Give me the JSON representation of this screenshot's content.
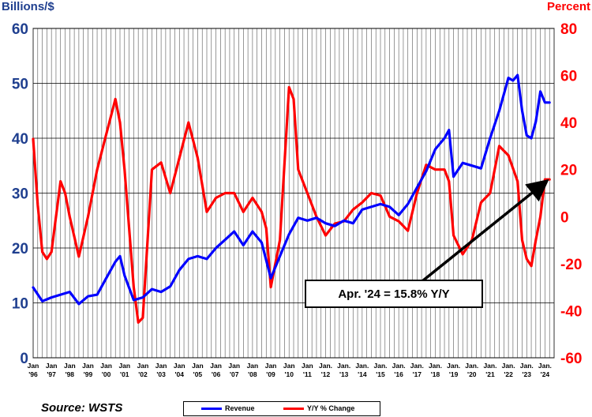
{
  "chart_data": {
    "type": "line",
    "left_axis_label": "Billions/$",
    "right_axis_label": "Percent",
    "source": "Source: WSTS",
    "callout": "Apr. '24 = 15.8% Y/Y",
    "left_ylim": [
      0,
      60
    ],
    "left_ticks": [
      0,
      10,
      20,
      30,
      40,
      50,
      60
    ],
    "right_ylim": [
      -60,
      80
    ],
    "right_ticks": [
      -60,
      -40,
      -20,
      0,
      20,
      40,
      60,
      80
    ],
    "x_tick_top": [
      "Jan",
      "Jan",
      "Jan",
      "Jan",
      "Jan",
      "Jan",
      "Jan",
      "Jan",
      "Jan",
      "Jan",
      "Jan",
      "Jan",
      "Jan",
      "Jan",
      "Jan",
      "Jan",
      "Jan.",
      "Jan.",
      "Jan.",
      "Jan.",
      "Jan.",
      "Jan.",
      "Jan.",
      "Jan.",
      "Jan.",
      "Jan.",
      "Jan.",
      "Jan.",
      "Jan."
    ],
    "x_tick_bottom": [
      "'96",
      "'97",
      "'98",
      "'99",
      "'00",
      "'01",
      "'02",
      "'03",
      "'04",
      "'05",
      "'06",
      "'07",
      "'08",
      "'09",
      "'10",
      "'11",
      "'12",
      "'13",
      "'14",
      "'15",
      "'16",
      "'17",
      "'18",
      "'19",
      "'20",
      "'21",
      "'22",
      "'23",
      "'24"
    ],
    "grid": true,
    "legend_position": "bottom-center",
    "series": [
      {
        "name": "Revenue",
        "axis": "left",
        "color": "#0000ff",
        "x": [
          1996.0,
          1996.5,
          1997.0,
          1997.5,
          1998.0,
          1998.5,
          1999.0,
          1999.5,
          2000.0,
          2000.5,
          2000.75,
          2001.0,
          2001.5,
          2002.0,
          2002.5,
          2003.0,
          2003.5,
          2004.0,
          2004.5,
          2005.0,
          2005.5,
          2006.0,
          2006.5,
          2007.0,
          2007.5,
          2008.0,
          2008.5,
          2009.0,
          2009.5,
          2010.0,
          2010.5,
          2011.0,
          2011.5,
          2012.0,
          2012.5,
          2013.0,
          2013.5,
          2014.0,
          2014.5,
          2015.0,
          2015.5,
          2016.0,
          2016.5,
          2017.0,
          2017.5,
          2018.0,
          2018.5,
          2018.75,
          2019.0,
          2019.5,
          2020.0,
          2020.5,
          2021.0,
          2021.5,
          2022.0,
          2022.25,
          2022.5,
          2022.75,
          2023.0,
          2023.25,
          2023.5,
          2023.75,
          2024.0,
          2024.25
        ],
        "values": [
          12.8,
          10.3,
          11.0,
          11.5,
          12.0,
          9.8,
          11.2,
          11.5,
          14.5,
          17.5,
          18.5,
          15.0,
          10.5,
          11.0,
          12.5,
          12.0,
          13.0,
          16.0,
          18.0,
          18.5,
          18.0,
          20.0,
          21.5,
          23.0,
          20.5,
          23.0,
          21.0,
          14.5,
          18.5,
          22.5,
          25.5,
          25.0,
          25.5,
          24.5,
          24.0,
          25.0,
          24.5,
          27.0,
          27.5,
          28.0,
          27.5,
          26.0,
          28.0,
          31.0,
          34.0,
          38.0,
          40.0,
          41.5,
          33.0,
          35.5,
          35.0,
          34.5,
          40.0,
          45.0,
          51.0,
          50.5,
          51.5,
          45.0,
          40.5,
          40.0,
          43.0,
          48.5,
          46.5,
          46.5
        ]
      },
      {
        "name": "Y/Y % Change",
        "axis": "right",
        "color": "#ff0000",
        "x": [
          1996.0,
          1996.25,
          1996.5,
          1996.75,
          1997.0,
          1997.5,
          1997.75,
          1998.0,
          1998.5,
          1999.0,
          1999.5,
          2000.0,
          2000.5,
          2000.75,
          2001.0,
          2001.5,
          2001.75,
          2002.0,
          2002.5,
          2003.0,
          2003.5,
          2004.0,
          2004.5,
          2005.0,
          2005.5,
          2006.0,
          2006.5,
          2007.0,
          2007.5,
          2008.0,
          2008.5,
          2008.75,
          2009.0,
          2009.5,
          2010.0,
          2010.25,
          2010.5,
          2011.0,
          2011.5,
          2012.0,
          2012.5,
          2013.0,
          2013.5,
          2014.0,
          2014.5,
          2015.0,
          2015.5,
          2016.0,
          2016.5,
          2017.0,
          2017.5,
          2018.0,
          2018.5,
          2018.75,
          2019.0,
          2019.5,
          2020.0,
          2020.5,
          2021.0,
          2021.5,
          2021.75,
          2022.0,
          2022.5,
          2022.75,
          2023.0,
          2023.25,
          2023.5,
          2023.75,
          2024.0,
          2024.25
        ],
        "values": [
          33.0,
          5.0,
          -15.0,
          -18.0,
          -15.0,
          15.0,
          10.0,
          0.0,
          -17.0,
          0.0,
          20.0,
          35.0,
          50.0,
          40.0,
          20.0,
          -30.0,
          -45.0,
          -43.0,
          20.0,
          23.0,
          10.0,
          25.0,
          40.0,
          25.0,
          2.0,
          8.0,
          10.0,
          10.0,
          2.0,
          8.0,
          2.0,
          -5.0,
          -30.0,
          -10.0,
          55.0,
          50.0,
          20.0,
          10.0,
          0.0,
          -8.0,
          -3.0,
          -2.0,
          3.0,
          6.0,
          10.0,
          9.0,
          0.0,
          -2.0,
          -6.0,
          10.0,
          22.0,
          20.0,
          20.0,
          15.0,
          -8.0,
          -16.0,
          -10.0,
          6.0,
          10.0,
          30.0,
          28.0,
          26.0,
          15.0,
          -10.0,
          -18.0,
          -21.0,
          -10.0,
          0.0,
          15.8,
          15.8
        ]
      }
    ]
  }
}
